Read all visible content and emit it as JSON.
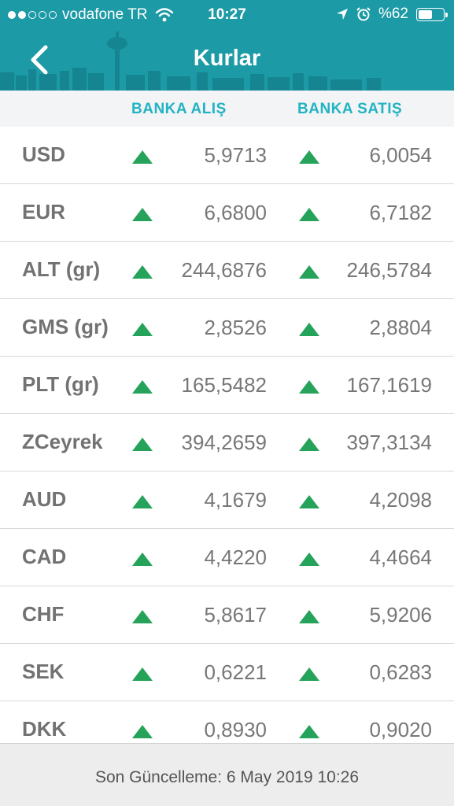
{
  "status_bar": {
    "carrier": "vodafone TR",
    "time": "10:27",
    "battery": "%62",
    "battery_level": 0.62,
    "signal_bars": 2,
    "icons": [
      "wifi-icon",
      "location-arrow-icon",
      "alarm-icon",
      "battery-icon"
    ]
  },
  "header": {
    "title": "Kurlar",
    "back_icon": "chevron-left-icon",
    "color": "#1c9aa6"
  },
  "columns": {
    "buy": "BANKA ALIŞ",
    "sell": "BANKA SATIŞ",
    "color": "#22b3c4"
  },
  "rates": [
    {
      "code": "USD",
      "buy": "5,9713",
      "sell": "6,0054",
      "trend": "up"
    },
    {
      "code": "EUR",
      "buy": "6,6800",
      "sell": "6,7182",
      "trend": "up"
    },
    {
      "code": "ALT (gr)",
      "buy": "244,6876",
      "sell": "246,5784",
      "trend": "up"
    },
    {
      "code": "GMS (gr)",
      "buy": "2,8526",
      "sell": "2,8804",
      "trend": "up"
    },
    {
      "code": "PLT (gr)",
      "buy": "165,5482",
      "sell": "167,1619",
      "trend": "up"
    },
    {
      "code": "ZCeyrek",
      "buy": "394,2659",
      "sell": "397,3134",
      "trend": "up"
    },
    {
      "code": "AUD",
      "buy": "4,1679",
      "sell": "4,2098",
      "trend": "up"
    },
    {
      "code": "CAD",
      "buy": "4,4220",
      "sell": "4,4664",
      "trend": "up"
    },
    {
      "code": "CHF",
      "buy": "5,8617",
      "sell": "5,9206",
      "trend": "up"
    },
    {
      "code": "SEK",
      "buy": "0,6221",
      "sell": "0,6283",
      "trend": "up"
    },
    {
      "code": "DKK",
      "buy": "0,8930",
      "sell": "0,9020",
      "trend": "up"
    }
  ],
  "trend_up_color": "#25a35a",
  "footer": {
    "last_update": "Son Güncelleme: 6 May 2019 10:26"
  }
}
